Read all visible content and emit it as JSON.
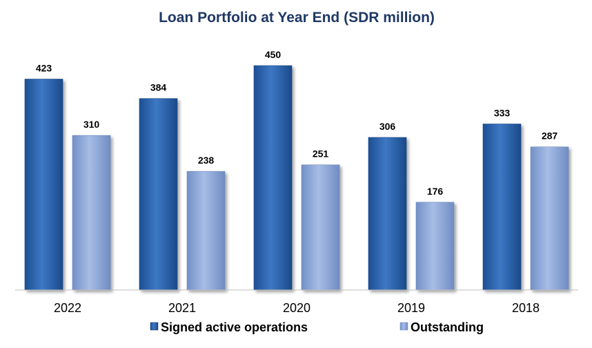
{
  "chart_data": {
    "type": "bar",
    "title": "Loan Portfolio at Year End (SDR million)",
    "categories": [
      "2022",
      "2021",
      "2020",
      "2019",
      "2018"
    ],
    "series": [
      {
        "name": "Signed active operations",
        "values": [
          423,
          384,
          450,
          306,
          333
        ],
        "color": "#2e65ad"
      },
      {
        "name": "Outstanding",
        "values": [
          310,
          238,
          251,
          176,
          287
        ],
        "color": "#8fa9d9"
      }
    ],
    "ylim": [
      0,
      500
    ],
    "grid": false,
    "legend_position": "bottom"
  }
}
